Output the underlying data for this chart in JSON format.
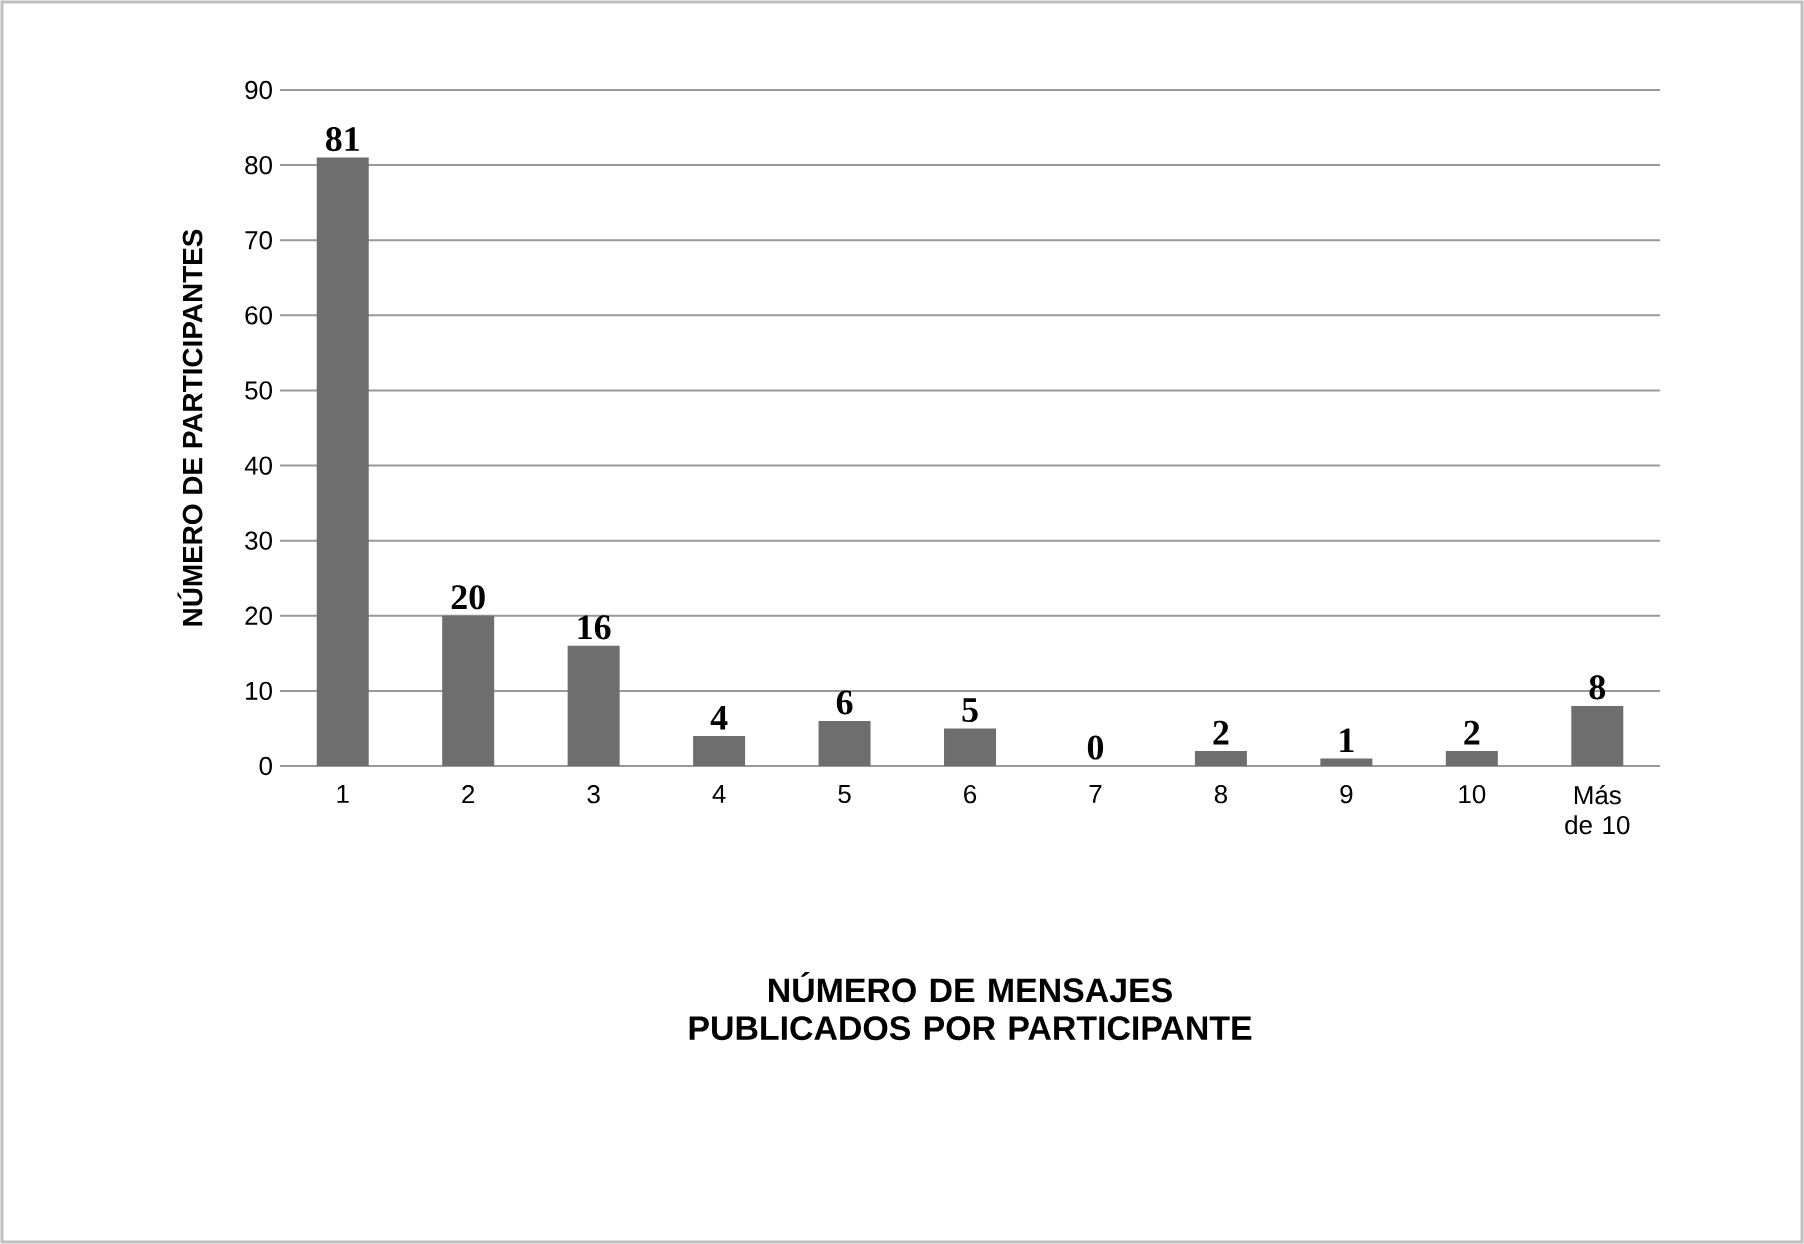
{
  "chart_data": {
    "type": "bar",
    "xlabel": "NÚMERO DE MENSAJES PUBLICADOS POR PARTICIPANTE",
    "ylabel": "NÚMERO DE PARTICIPANTES",
    "categories": [
      "1",
      "2",
      "3",
      "4",
      "5",
      "6",
      "7",
      "8",
      "9",
      "10",
      "Más de 10"
    ],
    "values": [
      81,
      20,
      16,
      4,
      6,
      5,
      0,
      2,
      1,
      2,
      8
    ],
    "color": "#6e6e6e",
    "ylim": [
      0,
      90
    ],
    "yticks": [
      0,
      10,
      20,
      30,
      40,
      50,
      60,
      70,
      80,
      90
    ],
    "grid": "y",
    "data_labels": true
  }
}
